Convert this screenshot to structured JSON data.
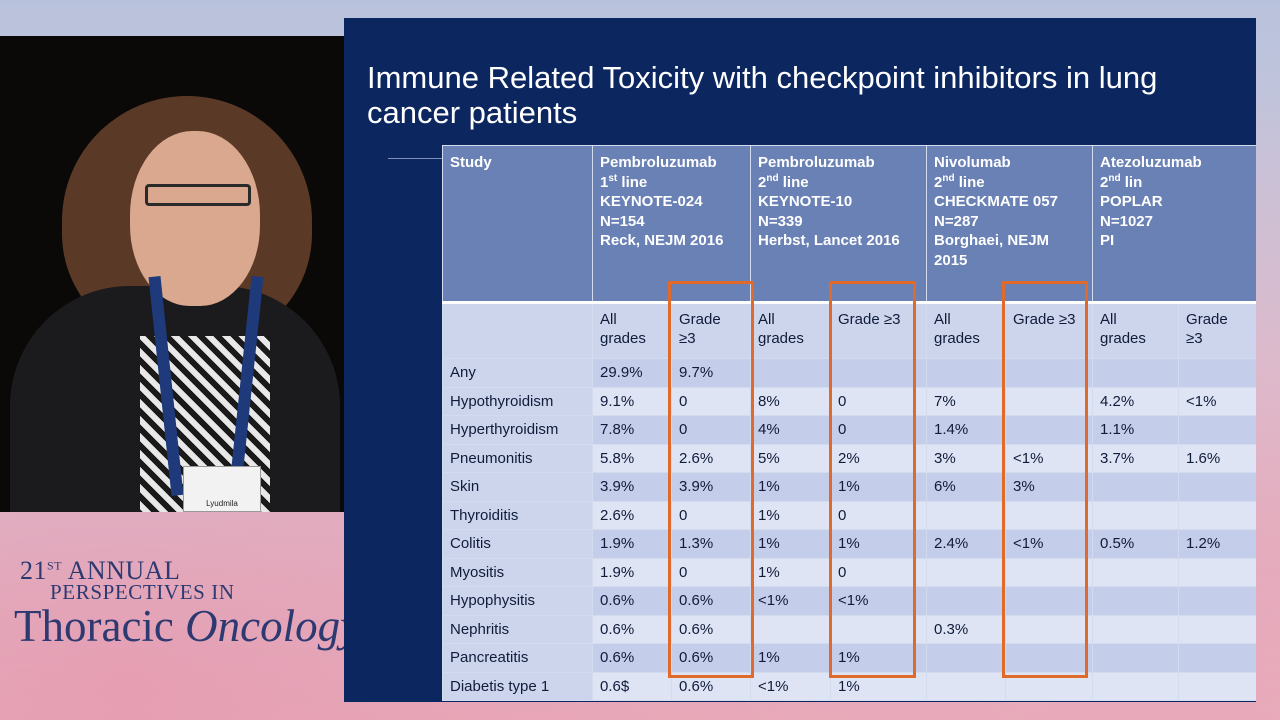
{
  "slide": {
    "title": "Immune Related Toxicity with checkpoint inhibitors in lung cancer patients"
  },
  "speaker": {
    "badge_name": "Lyudmila"
  },
  "conference": {
    "line1_num": "21",
    "line1_sup": "ST",
    "line1_rest": " ANNUAL",
    "line2": "PERSPECTIVES IN",
    "line3_a": "Thoracic ",
    "line3_b": "Oncology"
  },
  "table": {
    "study_label": "Study",
    "studies": [
      {
        "drug": "Pembroluzumab",
        "line_num": " 1",
        "line_sup": "st",
        "line_rest": " line",
        "trial": "KEYNOTE-024",
        "n": "N=154",
        "ref1": "Reck, NEJM 2016",
        "ref2": ""
      },
      {
        "drug": "Pembroluzumab",
        "line_num": "2",
        "line_sup": "nd",
        "line_rest": " line",
        "trial": "KEYNOTE-10",
        "n": "N=339",
        "ref1": "Herbst, Lancet 2016",
        "ref2": ""
      },
      {
        "drug": "Nivolumab",
        "line_num": "2",
        "line_sup": "nd",
        "line_rest": " line",
        "trial": "CHECKMATE 057",
        "n": "N=287",
        "ref1": "Borghaei, NEJM",
        "ref2": "2015"
      },
      {
        "drug": "Atezoluzumab",
        "line_num": "2",
        "line_sup": "nd",
        "line_rest": " lin",
        "trial": "POPLAR",
        "n": "N=1027",
        "ref1": "PI",
        "ref2": ""
      }
    ],
    "subheaders": [
      {
        "a": "All",
        "b": "grades"
      },
      {
        "a": "Grade",
        "b": "≥3"
      },
      {
        "a": "All",
        "b": "grades"
      },
      {
        "a": "Grade ≥3",
        "b": ""
      },
      {
        "a": "All",
        "b": "grades"
      },
      {
        "a": "Grade ≥3",
        "b": ""
      },
      {
        "a": "All",
        "b": "grades"
      },
      {
        "a": "Grade",
        "b": "≥3"
      }
    ],
    "rows": [
      {
        "label": "Any",
        "cells": [
          "29.9%",
          "9.7%",
          "",
          "",
          "",
          "",
          "",
          ""
        ]
      },
      {
        "label": "Hypothyroidism",
        "cells": [
          "9.1%",
          "0",
          "8%",
          "0",
          "7%",
          "",
          "4.2%",
          "<1%"
        ]
      },
      {
        "label": "Hyperthyroidism",
        "cells": [
          "7.8%",
          "0",
          "4%",
          "0",
          "1.4%",
          "",
          "1.1%",
          ""
        ]
      },
      {
        "label": "Pneumonitis",
        "cells": [
          "5.8%",
          "2.6%",
          "5%",
          "2%",
          "3%",
          "<1%",
          "3.7%",
          "1.6%"
        ]
      },
      {
        "label": "Skin",
        "cells": [
          "3.9%",
          "3.9%",
          "1%",
          "1%",
          "6%",
          "3%",
          "",
          ""
        ]
      },
      {
        "label": "Thyroiditis",
        "cells": [
          "2.6%",
          "0",
          "1%",
          "0",
          "",
          "",
          "",
          ""
        ]
      },
      {
        "label": "Colitis",
        "cells": [
          "1.9%",
          "1.3%",
          "1%",
          "1%",
          "2.4%",
          "<1%",
          "0.5%",
          "1.2%"
        ]
      },
      {
        "label": "Myositis",
        "cells": [
          "1.9%",
          "0",
          "1%",
          "0",
          "",
          "",
          "",
          ""
        ]
      },
      {
        "label": "Hypophysitis",
        "cells": [
          "0.6%",
          "0.6%",
          "<1%",
          "<1%",
          "",
          "",
          "",
          ""
        ]
      },
      {
        "label": "Nephritis",
        "cells": [
          "0.6%",
          "0.6%",
          "",
          "",
          "0.3%",
          "",
          "",
          ""
        ]
      },
      {
        "label": "Pancreatitis",
        "cells": [
          "0.6%",
          "0.6%",
          "1%",
          "1%",
          "",
          "",
          "",
          ""
        ]
      },
      {
        "label": "Diabetis type 1",
        "cells": [
          "0.6$",
          "0.6%",
          "<1%",
          "1%",
          "",
          "",
          "",
          ""
        ]
      }
    ]
  },
  "colors": {
    "slide_bg": "#0c2660",
    "header_bg": "#6a81b6",
    "highlight": "#e06a2a"
  }
}
